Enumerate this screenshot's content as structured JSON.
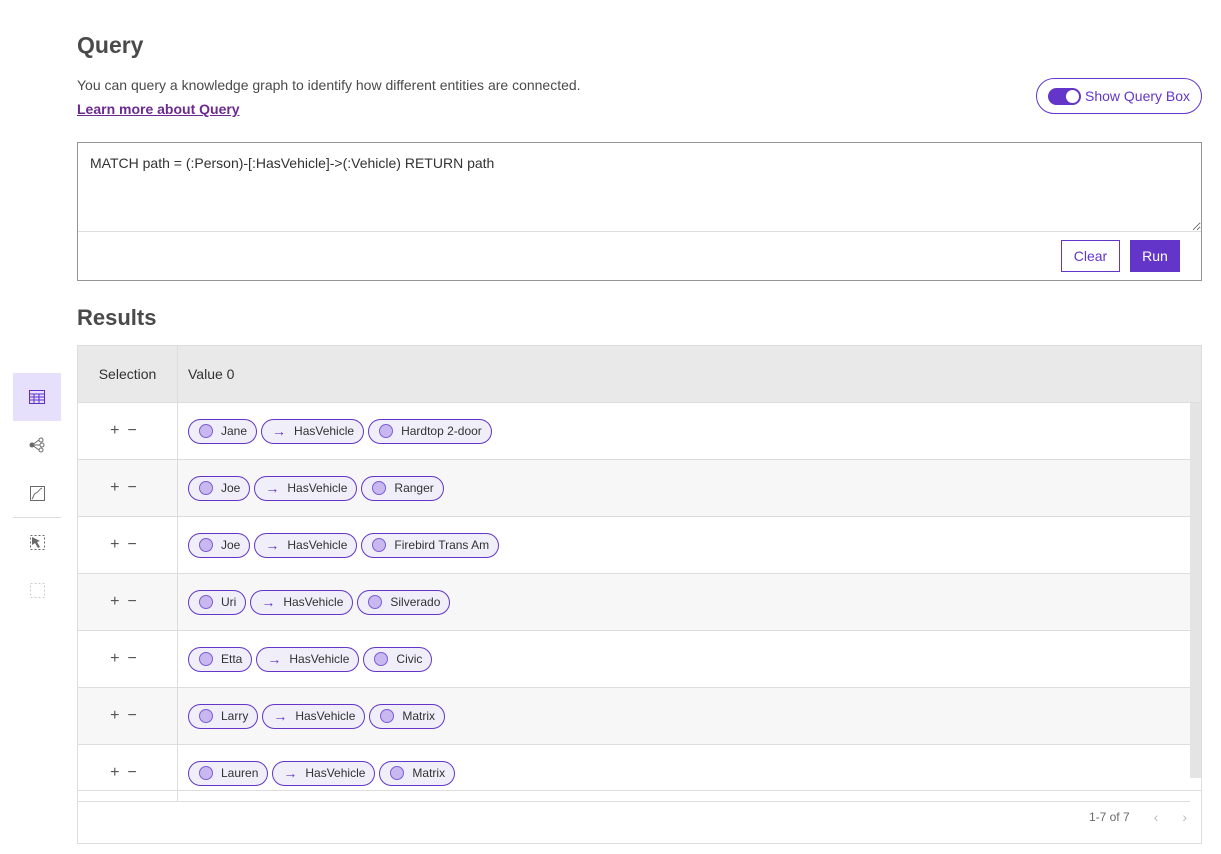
{
  "rail": {
    "items": [
      {
        "icon": "table-icon",
        "active": true
      },
      {
        "icon": "link-chart-icon"
      },
      {
        "icon": "map-icon"
      },
      {
        "icon": "select-icon"
      },
      {
        "icon": "clear-selection-icon",
        "disabled": true
      }
    ]
  },
  "header": {
    "title": "Query",
    "description": "You can query a knowledge graph to identify how different entities are connected.",
    "learn_more": "Learn more about Query",
    "toggle_label": "Show Query Box",
    "toggle_on": true
  },
  "query": {
    "text": "MATCH path = (:Person)-[:HasVehicle]->(:Vehicle) RETURN path",
    "clear": "Clear",
    "run": "Run"
  },
  "results": {
    "title": "Results",
    "columns": [
      "Selection",
      "Value 0"
    ],
    "rows": [
      {
        "person": "Jane",
        "rel": "HasVehicle",
        "vehicle": "Hardtop 2-door"
      },
      {
        "person": "Joe",
        "rel": "HasVehicle",
        "vehicle": "Ranger"
      },
      {
        "person": "Joe",
        "rel": "HasVehicle",
        "vehicle": "Firebird Trans Am"
      },
      {
        "person": "Uri",
        "rel": "HasVehicle",
        "vehicle": "Silverado"
      },
      {
        "person": "Etta",
        "rel": "HasVehicle",
        "vehicle": "Civic"
      },
      {
        "person": "Larry",
        "rel": "HasVehicle",
        "vehicle": "Matrix"
      },
      {
        "person": "Lauren",
        "rel": "HasVehicle",
        "vehicle": "Matrix"
      }
    ],
    "pagination": "1-7 of 7",
    "add": "+",
    "remove": "−",
    "arrow": "→"
  },
  "colors": {
    "accent": "#6336c9"
  }
}
